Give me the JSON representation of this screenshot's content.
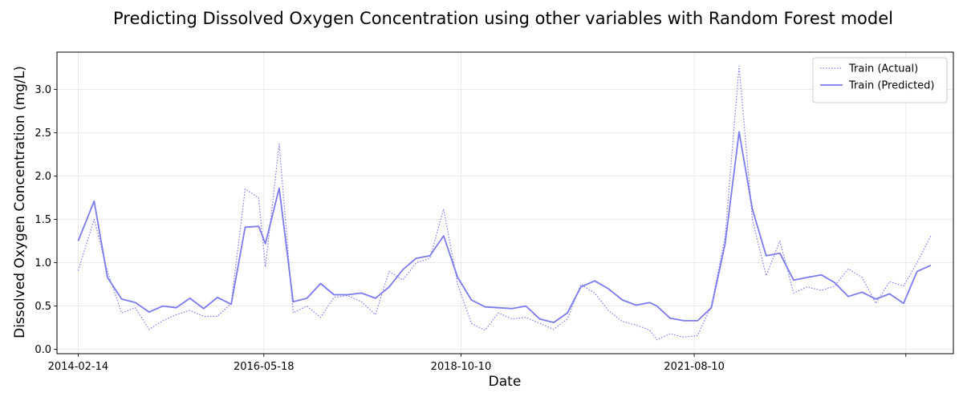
{
  "chart_data": {
    "type": "line",
    "title": "Predicting Dissolved Oxygen Concentration using other variables with Random Forest model",
    "xlabel": "Date",
    "ylabel": "Dissolved Oxygen Concentration (mg/L)",
    "xlim": [
      "2013-11-12",
      "2024-10-03"
    ],
    "ylim": [
      -0.05,
      3.43
    ],
    "x_tick_labels": [
      "2014-02-14",
      "2016-05-18",
      "2018-10-10",
      "2021-08-10",
      ""
    ],
    "x_ticks": [
      "2014-02-14",
      "2016-05-18",
      "2018-10-10",
      "2021-08-10",
      "2024-03-06"
    ],
    "y_ticks": [
      "0.0",
      "0.5",
      "1.0",
      "1.5",
      "2.0",
      "2.5",
      "3.0"
    ],
    "grid": true,
    "legend_position": "top-right",
    "colors": {
      "train": "#7b7bf0",
      "test": "#ee0000"
    },
    "series": [
      {
        "name": "Train (Actual)",
        "style": "dotted",
        "color": "#7b7bf0",
        "points": [
          [
            "2014-02-14",
            0.91
          ],
          [
            "2014-04-26",
            1.5
          ],
          [
            "2014-06-24",
            0.9
          ],
          [
            "2014-08-26",
            0.42
          ],
          [
            "2014-10-26",
            0.48
          ],
          [
            "2014-12-26",
            0.23
          ],
          [
            "2015-02-25",
            0.33
          ],
          [
            "2015-04-25",
            0.4
          ],
          [
            "2015-06-25",
            0.45
          ],
          [
            "2015-08-25",
            0.38
          ],
          [
            "2015-10-25",
            0.38
          ],
          [
            "2015-12-25",
            0.53
          ],
          [
            "2016-02-25",
            1.85
          ],
          [
            "2016-04-25",
            1.75
          ],
          [
            "2016-05-25",
            0.95
          ],
          [
            "2016-07-25",
            2.37
          ],
          [
            "2016-09-25",
            0.42
          ],
          [
            "2016-11-25",
            0.5
          ],
          [
            "2017-01-25",
            0.37
          ],
          [
            "2017-03-25",
            0.6
          ],
          [
            "2017-05-25",
            0.62
          ],
          [
            "2017-07-25",
            0.55
          ],
          [
            "2017-09-25",
            0.4
          ],
          [
            "2017-11-25",
            0.9
          ],
          [
            "2018-01-25",
            0.8
          ],
          [
            "2018-03-25",
            1.0
          ],
          [
            "2018-05-25",
            1.05
          ],
          [
            "2018-07-25",
            1.62
          ],
          [
            "2018-09-25",
            0.75
          ],
          [
            "2018-11-25",
            0.3
          ],
          [
            "2019-01-25",
            0.22
          ],
          [
            "2019-03-25",
            0.42
          ],
          [
            "2019-05-25",
            0.35
          ],
          [
            "2019-07-25",
            0.37
          ],
          [
            "2019-09-25",
            0.3
          ],
          [
            "2019-11-25",
            0.23
          ],
          [
            "2020-01-25",
            0.35
          ],
          [
            "2020-03-25",
            0.75
          ],
          [
            "2020-05-25",
            0.65
          ],
          [
            "2020-07-25",
            0.45
          ],
          [
            "2020-09-25",
            0.32
          ],
          [
            "2020-11-25",
            0.28
          ],
          [
            "2021-01-25",
            0.22
          ],
          [
            "2021-02-25",
            0.11
          ],
          [
            "2021-04-25",
            0.18
          ],
          [
            "2021-06-25",
            0.14
          ],
          [
            "2021-08-25",
            0.16
          ],
          [
            "2021-10-25",
            0.5
          ],
          [
            "2021-12-25",
            1.3
          ],
          [
            "2022-02-25",
            3.27
          ],
          [
            "2022-04-25",
            1.5
          ],
          [
            "2022-06-25",
            0.85
          ],
          [
            "2022-08-25",
            1.25
          ],
          [
            "2022-10-25",
            0.65
          ],
          [
            "2022-12-25",
            0.72
          ],
          [
            "2023-02-25",
            0.68
          ],
          [
            "2023-04-25",
            0.73
          ],
          [
            "2023-06-25",
            0.93
          ],
          [
            "2023-08-25",
            0.83
          ],
          [
            "2023-10-25",
            0.53
          ],
          [
            "2023-12-25",
            0.78
          ],
          [
            "2024-02-25",
            0.73
          ],
          [
            "2024-04-25",
            1.0
          ],
          [
            "2024-06-25",
            1.31
          ]
        ]
      },
      {
        "name": "Train (Predicted)",
        "style": "solid",
        "color": "#7b7bf0",
        "points": [
          [
            "2014-02-14",
            1.25
          ],
          [
            "2014-04-26",
            1.71
          ],
          [
            "2014-06-24",
            0.83
          ],
          [
            "2014-08-26",
            0.58
          ],
          [
            "2014-10-26",
            0.54
          ],
          [
            "2014-12-26",
            0.43
          ],
          [
            "2015-02-25",
            0.5
          ],
          [
            "2015-04-25",
            0.48
          ],
          [
            "2015-06-25",
            0.59
          ],
          [
            "2015-08-25",
            0.47
          ],
          [
            "2015-10-25",
            0.6
          ],
          [
            "2015-12-25",
            0.52
          ],
          [
            "2016-02-25",
            1.41
          ],
          [
            "2016-04-25",
            1.42
          ],
          [
            "2016-05-25",
            1.22
          ],
          [
            "2016-07-25",
            1.86
          ],
          [
            "2016-09-25",
            0.55
          ],
          [
            "2016-11-25",
            0.59
          ],
          [
            "2017-01-25",
            0.76
          ],
          [
            "2017-03-25",
            0.63
          ],
          [
            "2017-05-25",
            0.63
          ],
          [
            "2017-07-25",
            0.65
          ],
          [
            "2017-09-25",
            0.59
          ],
          [
            "2017-11-25",
            0.72
          ],
          [
            "2018-01-25",
            0.92
          ],
          [
            "2018-03-25",
            1.05
          ],
          [
            "2018-05-25",
            1.08
          ],
          [
            "2018-07-25",
            1.31
          ],
          [
            "2018-09-25",
            0.83
          ],
          [
            "2018-11-25",
            0.57
          ],
          [
            "2019-01-25",
            0.49
          ],
          [
            "2019-03-25",
            0.48
          ],
          [
            "2019-05-25",
            0.47
          ],
          [
            "2019-07-25",
            0.5
          ],
          [
            "2019-09-25",
            0.35
          ],
          [
            "2019-11-25",
            0.31
          ],
          [
            "2020-01-25",
            0.42
          ],
          [
            "2020-03-25",
            0.72
          ],
          [
            "2020-05-25",
            0.79
          ],
          [
            "2020-07-25",
            0.7
          ],
          [
            "2020-09-25",
            0.57
          ],
          [
            "2020-11-25",
            0.51
          ],
          [
            "2021-01-25",
            0.54
          ],
          [
            "2021-02-25",
            0.5
          ],
          [
            "2021-04-25",
            0.36
          ],
          [
            "2021-06-25",
            0.33
          ],
          [
            "2021-08-25",
            0.33
          ],
          [
            "2021-10-25",
            0.48
          ],
          [
            "2021-12-25",
            1.22
          ],
          [
            "2022-02-25",
            2.51
          ],
          [
            "2022-04-25",
            1.62
          ],
          [
            "2022-06-25",
            1.08
          ],
          [
            "2022-08-25",
            1.11
          ],
          [
            "2022-10-25",
            0.8
          ],
          [
            "2022-12-25",
            0.83
          ],
          [
            "2023-02-25",
            0.86
          ],
          [
            "2023-04-25",
            0.77
          ],
          [
            "2023-06-25",
            0.61
          ],
          [
            "2023-08-25",
            0.66
          ],
          [
            "2023-10-25",
            0.58
          ],
          [
            "2023-12-25",
            0.64
          ],
          [
            "2024-02-25",
            0.53
          ],
          [
            "2024-04-25",
            0.9
          ],
          [
            "2024-06-25",
            0.97
          ]
        ]
      }
    ]
  }
}
